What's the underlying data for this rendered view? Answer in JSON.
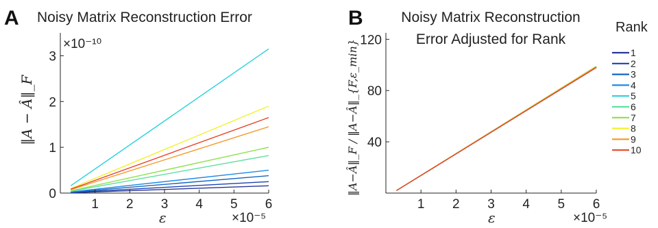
{
  "chart_data": [
    {
      "type": "line",
      "panel": "A",
      "title": "Noisy Matrix Reconstruction Error",
      "xlabel": "ε",
      "ylabel": "‖A − Â‖_F",
      "x_multiplier": "×10⁻⁵",
      "y_multiplier": "×10⁻¹⁰",
      "xlim": [
        0,
        6
      ],
      "ylim": [
        0,
        3.5
      ],
      "x_ticks": [
        "1",
        "2",
        "3",
        "4",
        "5",
        "6"
      ],
      "y_ticks": [
        "0",
        "1",
        "2",
        "3"
      ],
      "x": [
        0.3,
        6
      ],
      "series": [
        {
          "name": "1",
          "color": "#283593",
          "values": [
            0.008,
            0.16
          ]
        },
        {
          "name": "2",
          "color": "#1e40b0",
          "values": [
            0.013,
            0.25
          ]
        },
        {
          "name": "3",
          "color": "#1565c0",
          "values": [
            0.02,
            0.38
          ]
        },
        {
          "name": "4",
          "color": "#1e88e5",
          "values": [
            0.025,
            0.5
          ]
        },
        {
          "name": "5",
          "color": "#26d0dc",
          "values": [
            0.16,
            3.15
          ]
        },
        {
          "name": "6",
          "color": "#5de0a0",
          "values": [
            0.04,
            0.82
          ]
        },
        {
          "name": "7",
          "color": "#8ee04a",
          "values": [
            0.05,
            1.0
          ]
        },
        {
          "name": "8",
          "color": "#f2f230",
          "values": [
            0.1,
            1.9
          ]
        },
        {
          "name": "9",
          "color": "#f59a2e",
          "values": [
            0.075,
            1.45
          ]
        },
        {
          "name": "10",
          "color": "#e8442a",
          "values": [
            0.085,
            1.65
          ]
        }
      ]
    },
    {
      "type": "line",
      "panel": "B",
      "title": "Noisy Matrix Reconstruction",
      "title_line2": "Error Adjusted for Rank",
      "xlabel": "ε",
      "ylabel": "‖A−Â‖_F / ‖A−Â‖_{F,ε_min}",
      "x_multiplier": "×10⁻⁵",
      "xlim": [
        0,
        6
      ],
      "ylim": [
        0,
        125
      ],
      "x_ticks": [
        "1",
        "2",
        "3",
        "4",
        "5",
        "6"
      ],
      "y_ticks": [
        "40",
        "80",
        "120"
      ],
      "x": [
        0.3,
        6
      ],
      "series": [
        {
          "name": "1",
          "color": "#283593",
          "values": [
            2,
            98
          ]
        },
        {
          "name": "2",
          "color": "#1e40b0",
          "values": [
            2,
            98
          ]
        },
        {
          "name": "3",
          "color": "#1565c0",
          "values": [
            2,
            98
          ]
        },
        {
          "name": "4",
          "color": "#1e88e5",
          "values": [
            2,
            98
          ]
        },
        {
          "name": "5",
          "color": "#26d0dc",
          "values": [
            2,
            98
          ]
        },
        {
          "name": "6",
          "color": "#5de0a0",
          "values": [
            2,
            98
          ]
        },
        {
          "name": "7",
          "color": "#8ee04a",
          "values": [
            2,
            99
          ]
        },
        {
          "name": "8",
          "color": "#f2f230",
          "values": [
            2,
            98.5
          ]
        },
        {
          "name": "9",
          "color": "#f59a2e",
          "values": [
            2,
            98.5
          ]
        },
        {
          "name": "10",
          "color": "#e8442a",
          "values": [
            2,
            98
          ]
        }
      ]
    }
  ],
  "legend": {
    "title": "Rank",
    "placement": "right",
    "items": [
      "1",
      "2",
      "3",
      "4",
      "5",
      "6",
      "7",
      "8",
      "9",
      "10"
    ]
  }
}
